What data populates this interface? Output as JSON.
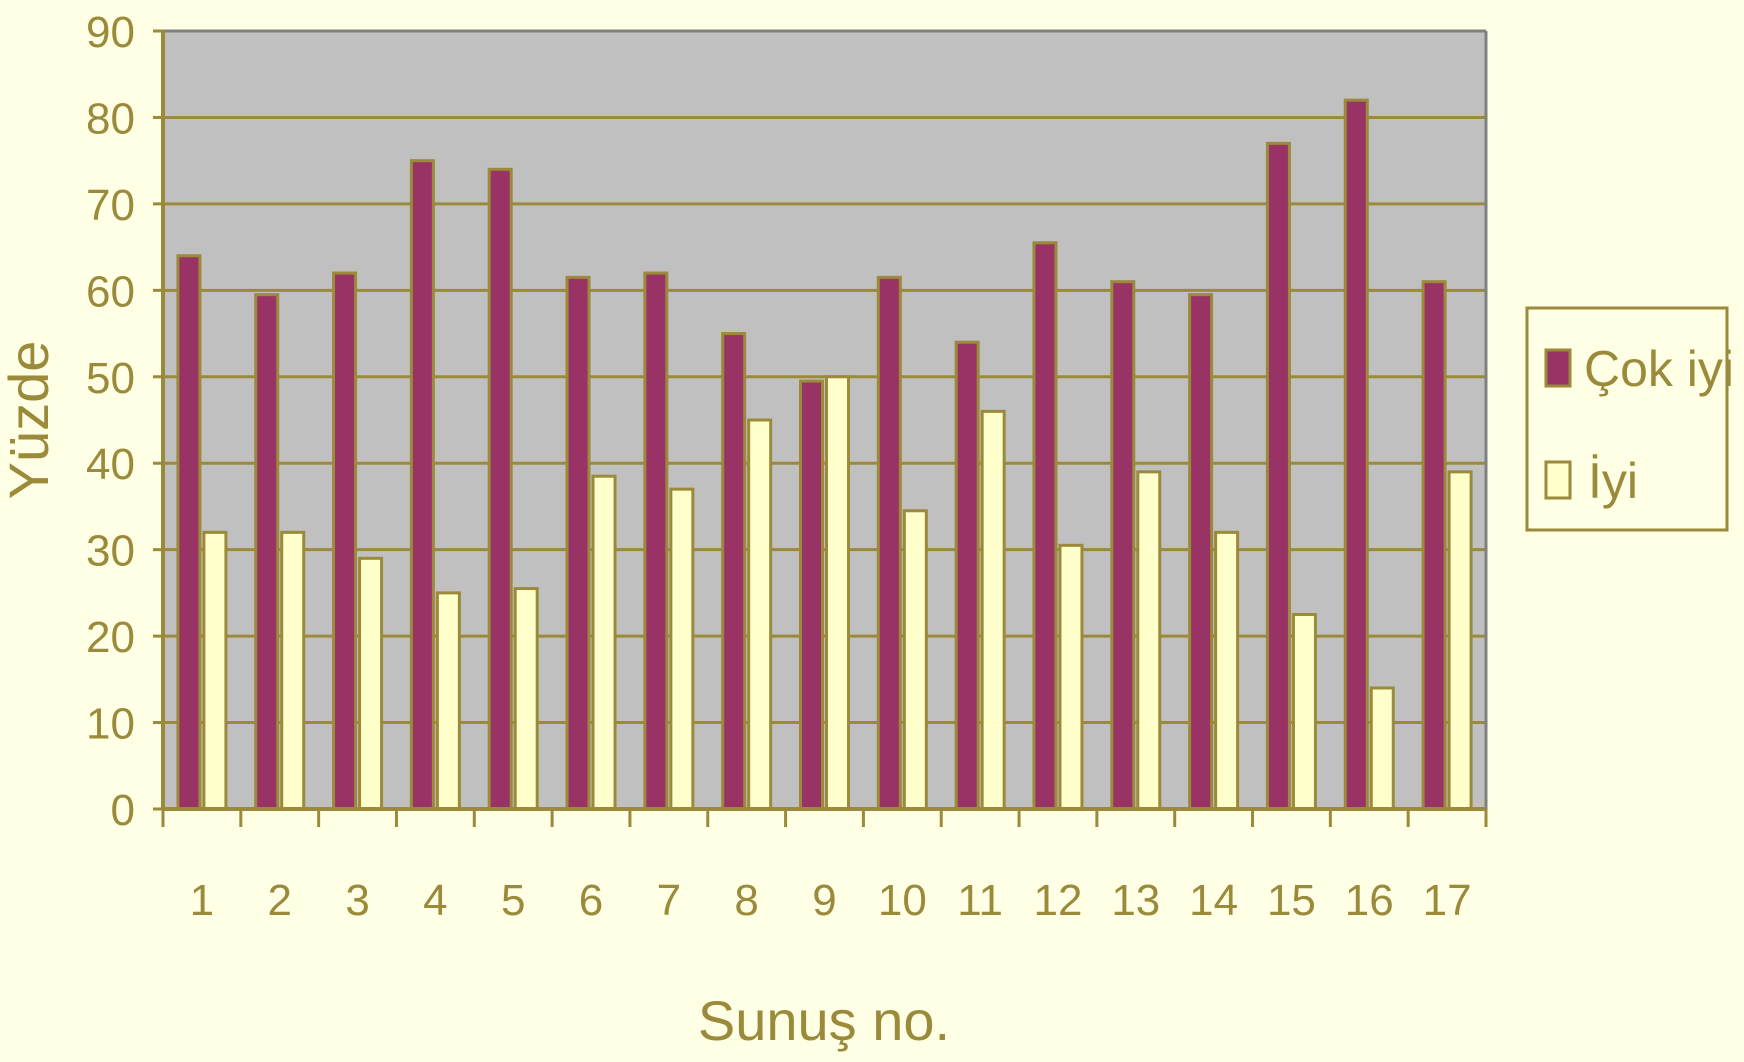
{
  "chart_data": {
    "type": "bar",
    "title": "",
    "xlabel": "Sunuş no.",
    "ylabel": "Yüzde",
    "ylim": [
      0,
      90
    ],
    "yticks": [
      0,
      10,
      20,
      30,
      40,
      50,
      60,
      70,
      80,
      90
    ],
    "grid": true,
    "legend_position": "right",
    "categories": [
      "1",
      "2",
      "3",
      "4",
      "5",
      "6",
      "7",
      "8",
      "9",
      "10",
      "11",
      "12",
      "13",
      "14",
      "15",
      "16",
      "17"
    ],
    "series": [
      {
        "name": "Çok iyi",
        "color": "#993366",
        "values": [
          64,
          59.5,
          62,
          75,
          74,
          61.5,
          62,
          55,
          49.5,
          61.5,
          54,
          65.5,
          61,
          59.5,
          77,
          82,
          61
        ]
      },
      {
        "name": "İyi",
        "color": "#ffffcc",
        "values": [
          32,
          32,
          29,
          25,
          25.5,
          38.5,
          37,
          45,
          50,
          34.5,
          46,
          30.5,
          39,
          32,
          22.5,
          14,
          39
        ]
      }
    ],
    "colors": {
      "background": "#ffffe6",
      "plot_area": "#c0c0c0",
      "axis": "#9a8a3a",
      "gridline": "#9a8a3a"
    }
  }
}
